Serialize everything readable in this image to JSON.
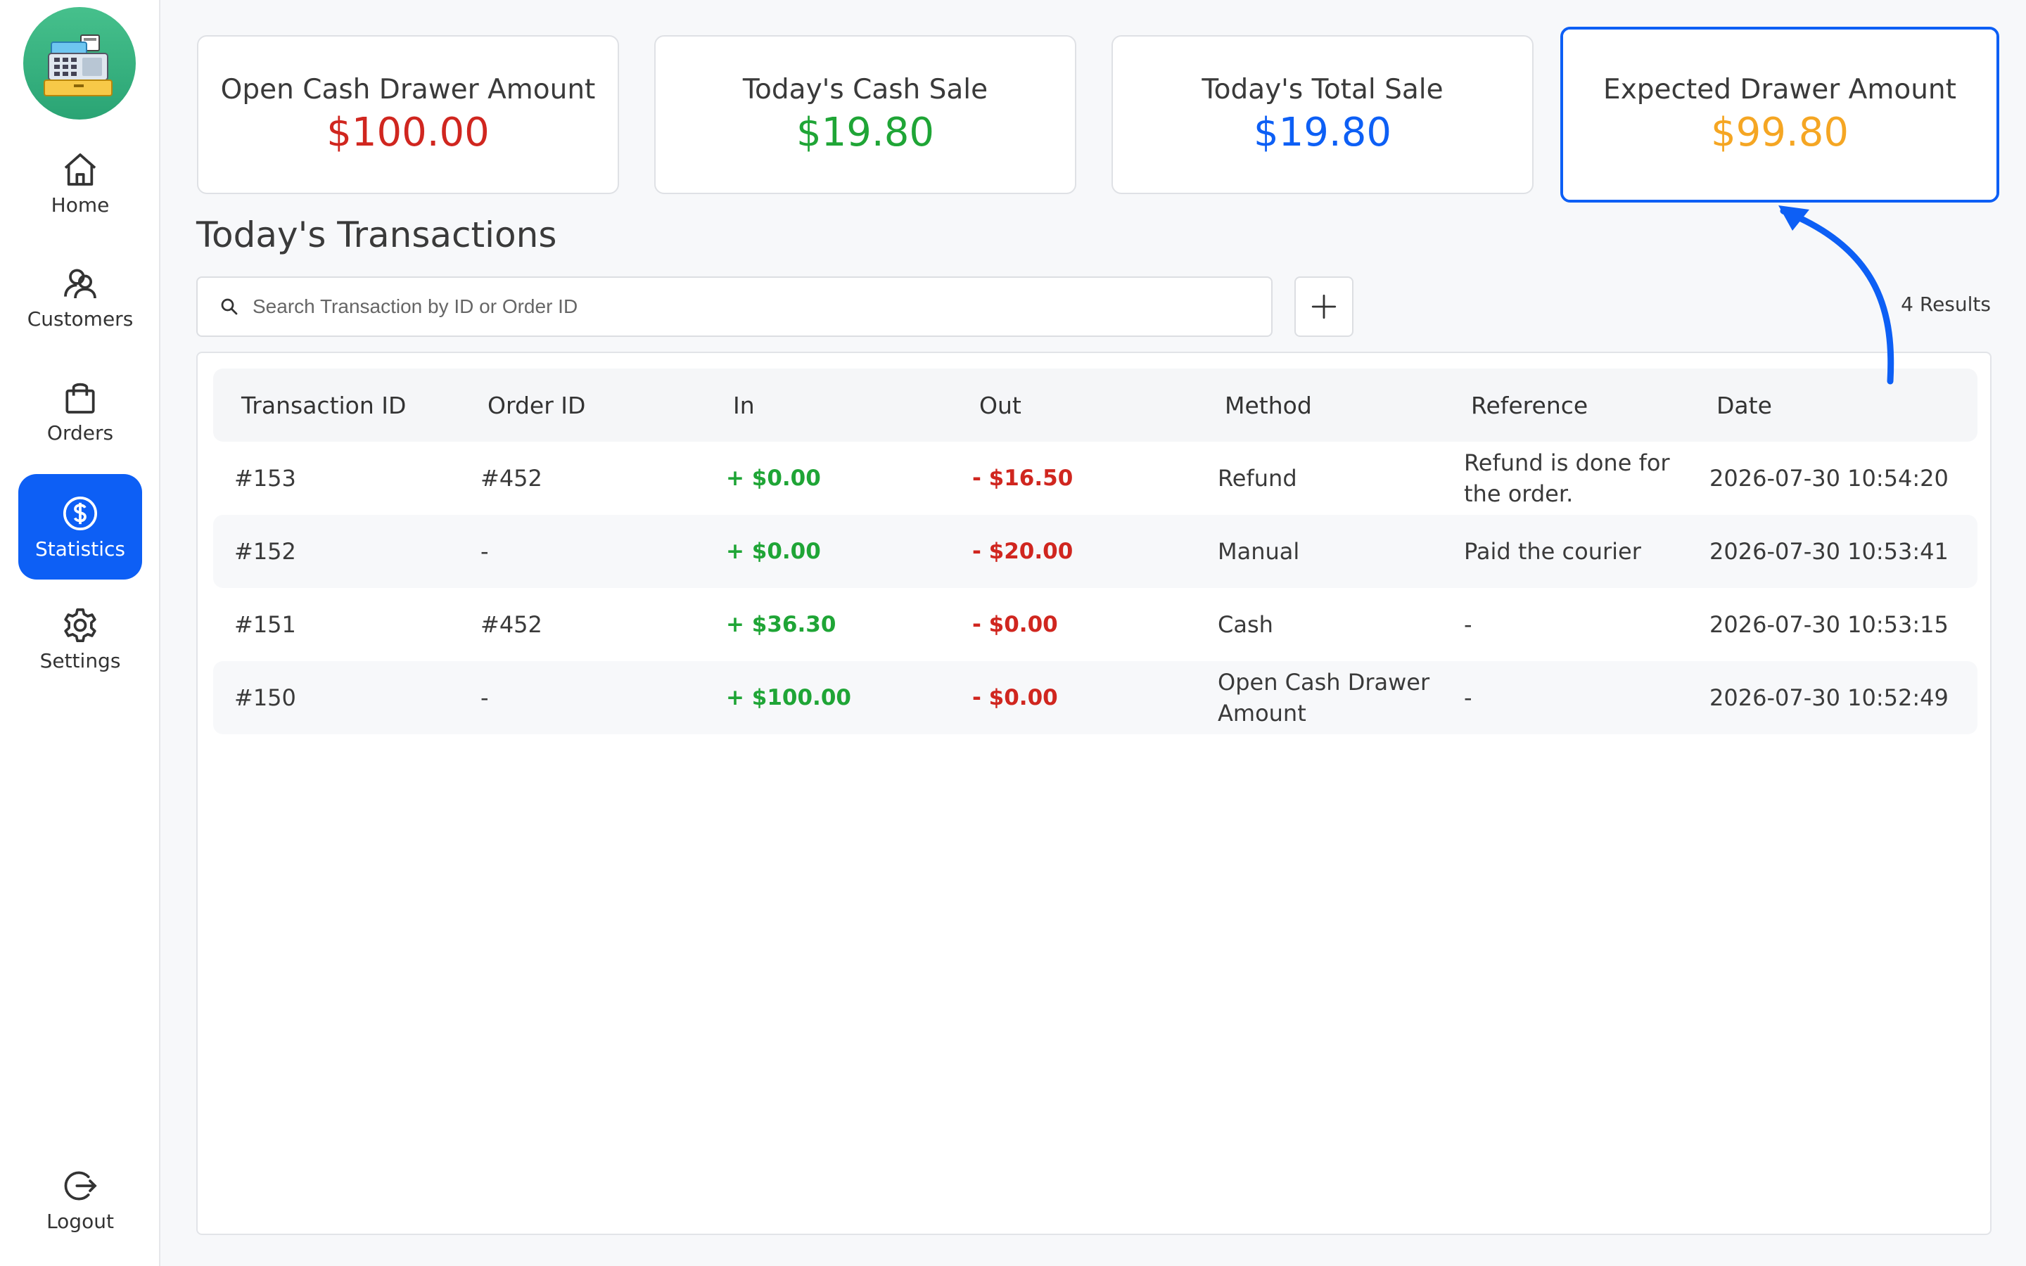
{
  "sidebar": {
    "items": [
      {
        "label": "Home",
        "icon": "home-icon"
      },
      {
        "label": "Customers",
        "icon": "customers-icon"
      },
      {
        "label": "Orders",
        "icon": "orders-icon"
      },
      {
        "label": "Statistics",
        "icon": "dollar-icon",
        "active": true
      },
      {
        "label": "Settings",
        "icon": "gear-icon"
      }
    ],
    "logout": "Logout"
  },
  "cards": [
    {
      "title": "Open Cash Drawer Amount",
      "value": "$100.00",
      "color": "#d0261f"
    },
    {
      "title": "Today's Cash Sale",
      "value": "$19.80",
      "color": "#1fa536"
    },
    {
      "title": "Today's Total Sale",
      "value": "$19.80",
      "color": "#0d5ff5"
    },
    {
      "title": "Expected Drawer Amount",
      "value": "$99.80",
      "color": "#f5a623",
      "highlighted": true
    }
  ],
  "section_title": "Today's Transactions",
  "search": {
    "placeholder": "Search Transaction by ID or Order ID",
    "value": ""
  },
  "results_label": "4 Results",
  "table": {
    "columns": [
      "Transaction ID",
      "Order ID",
      "In",
      "Out",
      "Method",
      "Reference",
      "Date"
    ],
    "rows": [
      {
        "id": "#153",
        "order": "#452",
        "in": "+ $0.00",
        "out": "- $16.50",
        "method": "Refund",
        "reference": "Refund is done for the order.",
        "date": "2026-07-30 10:54:20"
      },
      {
        "id": "#152",
        "order": "-",
        "in": "+ $0.00",
        "out": "- $20.00",
        "method": "Manual",
        "reference": "Paid the courier",
        "date": "2026-07-30 10:53:41"
      },
      {
        "id": "#151",
        "order": "#452",
        "in": "+ $36.30",
        "out": "- $0.00",
        "method": "Cash",
        "reference": "-",
        "date": "2026-07-30 10:53:15"
      },
      {
        "id": "#150",
        "order": "-",
        "in": "+ $100.00",
        "out": "- $0.00",
        "method": "Open Cash Drawer Amount",
        "reference": "-",
        "date": "2026-07-30 10:52:49"
      }
    ]
  },
  "colors": {
    "accent": "#0d5ff5",
    "positive": "#1fa536",
    "negative": "#d0261f",
    "warning": "#f5a623"
  }
}
